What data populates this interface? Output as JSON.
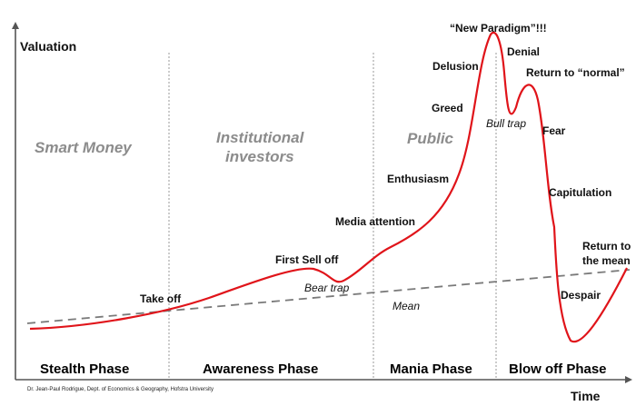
{
  "axes": {
    "y_label": "Valuation",
    "x_label": "Time"
  },
  "groups": [
    "Smart Money",
    "Institutional",
    "investors",
    "Public"
  ],
  "stages": {
    "new_paradigm": "“New Paradigm”!!!",
    "denial": "Denial",
    "delusion": "Delusion",
    "return_to_normal": "Return to “normal”",
    "greed": "Greed",
    "bull_trap": "Bull trap",
    "fear": "Fear",
    "enthusiasm": "Enthusiasm",
    "capitulation": "Capitulation",
    "media_attention": "Media attention",
    "return_to_the": "Return to",
    "the_mean": "the mean",
    "first_sell_off": "First Sell off",
    "take_off": "Take off",
    "bear_trap": "Bear trap",
    "despair": "Despair",
    "mean": "Mean"
  },
  "phases": [
    "Stealth Phase",
    "Awareness Phase",
    "Mania Phase",
    "Blow off Phase"
  ],
  "credit": "Dr. Jean-Paul Rodrigue, Dept. of Economics & Geography, Hofstra University",
  "colors": {
    "curve": "#e0141a",
    "mean_line": "#7a7a7a",
    "divider": "#999999",
    "axis": "#555555",
    "group_text": "#8c8c8c"
  }
}
